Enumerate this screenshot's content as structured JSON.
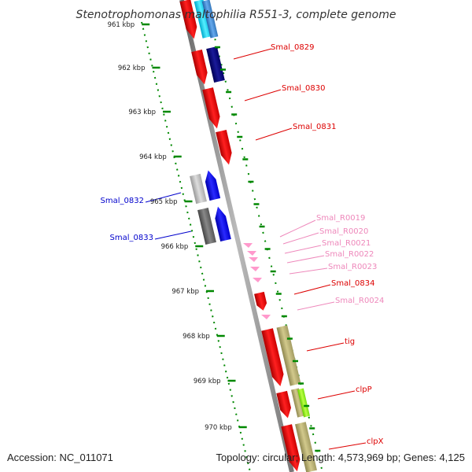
{
  "title": "Stenotrophomonas maltophilia R551-3, complete genome",
  "footer": {
    "accession": "Accession: NC_011071",
    "summary": "Topology: circular; Length: 4,573,969 bp; Genes: 4,125"
  },
  "axis_labels": [
    "961 kbp",
    "962 kbp",
    "963 kbp",
    "964 kbp",
    "965 kbp",
    "966 kbp",
    "967 kbp",
    "968 kbp",
    "969 kbp",
    "970 kbp"
  ],
  "gene_labels": [
    {
      "text": "Smal_0829",
      "color": "#dd0000"
    },
    {
      "text": "Smal_0830",
      "color": "#dd0000"
    },
    {
      "text": "Smal_0831",
      "color": "#dd0000"
    },
    {
      "text": "Smal_0832",
      "color": "#0000cc"
    },
    {
      "text": "Smal_0833",
      "color": "#0000cc"
    },
    {
      "text": "Smal_R0019",
      "color": "#ee88bb"
    },
    {
      "text": "Smal_R0020",
      "color": "#ee88bb"
    },
    {
      "text": "Smal_R0021",
      "color": "#ee88bb"
    },
    {
      "text": "Smal_R0022",
      "color": "#ee88bb"
    },
    {
      "text": "Smal_R0023",
      "color": "#ee88bb"
    },
    {
      "text": "Smal_0834",
      "color": "#dd0000"
    },
    {
      "text": "Smal_R0024",
      "color": "#ee88bb"
    },
    {
      "text": "tig",
      "color": "#dd0000"
    },
    {
      "text": "clpP",
      "color": "#dd0000"
    },
    {
      "text": "clpX",
      "color": "#dd0000"
    }
  ],
  "colors": {
    "forward_cds": "#ff0000",
    "reverse_cds": "#0000ff",
    "rna": "#ff99cc",
    "backbone": "#999999",
    "ticks": "#008800",
    "gc_tan": "#bdb478",
    "gc_grey": "#aaaaaa"
  }
}
